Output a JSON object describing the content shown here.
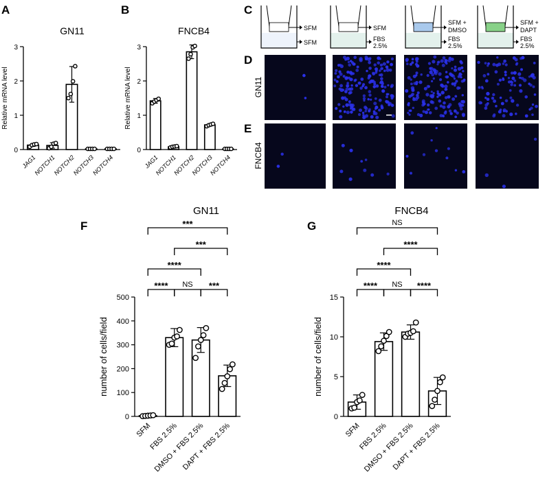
{
  "panels": {
    "A": {
      "letter": "A"
    },
    "B": {
      "letter": "B"
    },
    "C": {
      "letter": "C"
    },
    "D": {
      "letter": "D",
      "row_label": "GN11"
    },
    "E": {
      "letter": "E",
      "row_label": "FNCB4"
    },
    "F": {
      "letter": "F"
    },
    "G": {
      "letter": "G"
    }
  },
  "transwell": [
    {
      "top": [
        "SFM"
      ],
      "bottom": [
        "SFM"
      ],
      "top_color": "#ffffff",
      "bottom_color": "#eef3fb"
    },
    {
      "top": [
        "SFM"
      ],
      "bottom": [
        "FBS",
        "2.5%"
      ],
      "top_color": "#ffffff",
      "bottom_color": "#e3f1ec"
    },
    {
      "top": [
        "SFM +",
        "DMSO"
      ],
      "bottom": [
        "FBS",
        "2.5%"
      ],
      "top_color": "#a9c9ec",
      "bottom_color": "#e3f1ec"
    },
    {
      "top": [
        "SFM +",
        "DAPT"
      ],
      "bottom": [
        "FBS",
        "2.5%"
      ],
      "top_color": "#88d188",
      "bottom_color": "#e3f1ec"
    }
  ],
  "microscopy": {
    "background": "#06071c",
    "nuclei_color": "#2a30e8",
    "gn11_counts": [
      3,
      330,
      320,
      170
    ],
    "fncb4_counts": [
      2,
      9,
      11,
      3
    ]
  },
  "chart_data": [
    {
      "id": "A",
      "type": "bar",
      "title": "GN11",
      "ylabel": "Relative mRNA level",
      "ylim": [
        0,
        3
      ],
      "yticks": [
        "0",
        "1",
        "2",
        "3"
      ],
      "categories": [
        "JAG1",
        "NOTCH1",
        "NOTCH2",
        "NOTCH3",
        "NOTCH4"
      ],
      "values": [
        0.13,
        0.12,
        1.9,
        0.02,
        0.02
      ],
      "errors": [
        0.04,
        0.08,
        0.52,
        0.01,
        0.01
      ],
      "points": [
        [
          0.08,
          0.13,
          0.15,
          0.16
        ],
        [
          0.04,
          0.08,
          0.17,
          0.19
        ],
        [
          1.5,
          1.62,
          1.99,
          2.43
        ],
        [
          0.02,
          0.02,
          0.02,
          0.02
        ],
        [
          0.02,
          0.02,
          0.02,
          0.02
        ]
      ],
      "italic_ticks": true
    },
    {
      "id": "B",
      "type": "bar",
      "title": "FNCB4",
      "ylabel": "Relative mRNA level",
      "ylim": [
        0,
        3
      ],
      "yticks": [
        "0",
        "1",
        "2",
        "3"
      ],
      "categories": [
        "JAG1",
        "NOTCH1",
        "NOTCH2",
        "NOTCH3",
        "NOTCH4"
      ],
      "values": [
        1.42,
        0.08,
        2.85,
        0.72,
        0.02
      ],
      "errors": [
        0.07,
        0.02,
        0.2,
        0.03,
        0.01
      ],
      "points": [
        [
          1.35,
          1.4,
          1.44,
          1.48
        ],
        [
          0.06,
          0.08,
          0.09,
          0.1
        ],
        [
          2.65,
          2.78,
          2.98,
          3.02
        ],
        [
          0.68,
          0.71,
          0.73,
          0.75
        ],
        [
          0.02,
          0.02,
          0.02,
          0.02
        ]
      ],
      "italic_ticks": true
    },
    {
      "id": "F",
      "type": "bar",
      "title": "GN11",
      "ylabel": "number of cells/field",
      "ylim": [
        0,
        500
      ],
      "yticks": [
        "0",
        "100",
        "200",
        "300",
        "400",
        "500"
      ],
      "categories": [
        "SFM",
        "FBS 2.5%",
        "DMSO + FBS 2.5%",
        "DAPT + FBS 2.5%"
      ],
      "values": [
        3,
        330,
        320,
        170
      ],
      "errors": [
        2,
        38,
        52,
        45
      ],
      "points": [
        [
          1,
          2,
          3,
          4,
          5
        ],
        [
          300,
          305,
          330,
          335,
          362
        ],
        [
          245,
          293,
          320,
          340,
          370
        ],
        [
          115,
          140,
          168,
          198,
          218
        ]
      ],
      "italic_ticks": false,
      "comparisons": [
        {
          "from": 0,
          "to": 1,
          "label": "****"
        },
        {
          "from": 1,
          "to": 2,
          "label": "NS"
        },
        {
          "from": 2,
          "to": 3,
          "label": "***"
        },
        {
          "from": 0,
          "to": 2,
          "label": "****"
        },
        {
          "from": 1,
          "to": 3,
          "label": "***"
        },
        {
          "from": 0,
          "to": 3,
          "label": "***"
        }
      ]
    },
    {
      "id": "G",
      "type": "bar",
      "title": "FNCB4",
      "ylabel": "number of cells/field",
      "ylim": [
        0,
        15
      ],
      "yticks": [
        "0",
        "5",
        "10",
        "15"
      ],
      "categories": [
        "SFM",
        "FBS 2.5%",
        "DMSO + FBS 2.5%",
        "DAPT + FBS 2.5%"
      ],
      "values": [
        1.8,
        9.4,
        10.6,
        3.2
      ],
      "errors": [
        0.9,
        1.1,
        0.9,
        1.7
      ],
      "points": [
        [
          1,
          1.1,
          1.8,
          2,
          2.7
        ],
        [
          8.2,
          8.8,
          9.5,
          10.1,
          10.6
        ],
        [
          10,
          10.4,
          10.5,
          10.7,
          11.8
        ],
        [
          1.3,
          2.1,
          3.2,
          4.3,
          4.9
        ]
      ],
      "italic_ticks": false,
      "comparisons": [
        {
          "from": 0,
          "to": 1,
          "label": "****"
        },
        {
          "from": 1,
          "to": 2,
          "label": "NS"
        },
        {
          "from": 2,
          "to": 3,
          "label": "****"
        },
        {
          "from": 0,
          "to": 2,
          "label": "****"
        },
        {
          "from": 1,
          "to": 3,
          "label": "****"
        },
        {
          "from": 0,
          "to": 3,
          "label": "NS"
        }
      ]
    }
  ]
}
